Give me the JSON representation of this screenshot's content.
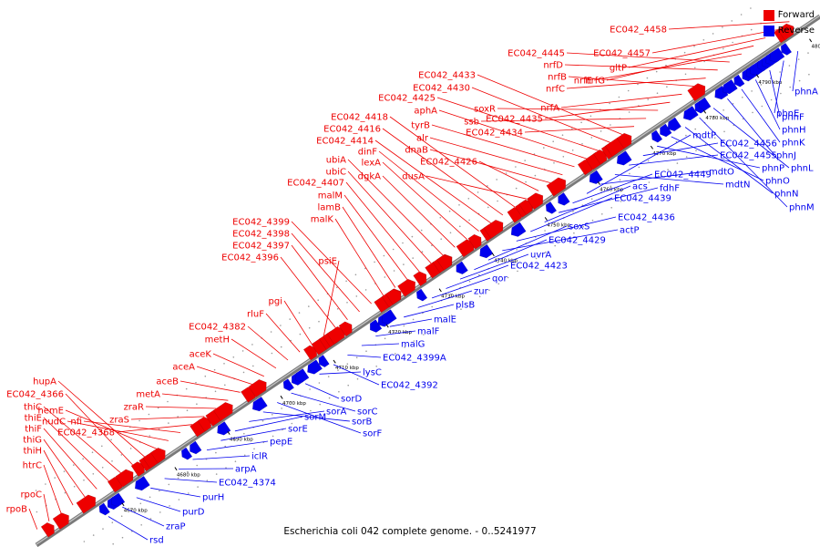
{
  "title": "Escherichia coli 042 complete genome. - 0..5241977",
  "colors": {
    "forward": "#ee0000",
    "reverse": "#0000ee",
    "backbone": "#808080"
  },
  "legend": {
    "forward": "Forward",
    "reverse": "Reverse"
  },
  "ticks": [
    "4670 kbp",
    "4680 kbp",
    "4690 kbp",
    "4700 kbp",
    "4710 kbp",
    "4720 kbp",
    "4730 kbp",
    "4740 kbp",
    "4750 kbp",
    "4760 kbp",
    "4770 kbp",
    "4780 kbp",
    "4790 kbp",
    "4800 kbp"
  ],
  "forward_labels": [
    "rpoB",
    "rpoC",
    "htrC",
    "thiH",
    "thiG",
    "thiF",
    "thiE",
    "thiC",
    "EC042_4366",
    "hupA",
    "hemE",
    "nudC",
    "nfi",
    "EC042_4368",
    "zraS",
    "zraR",
    "metA",
    "aceB",
    "aceA",
    "aceK",
    "metH",
    "EC042_4382",
    "rluF",
    "pgi",
    "psiE",
    "EC042_4396",
    "EC042_4397",
    "EC042_4398",
    "EC042_4399",
    "malK",
    "lamB",
    "malM",
    "EC042_4407",
    "ubiC",
    "ubiA",
    "dgkA",
    "lexA",
    "dinF",
    "EC042_4414",
    "EC042_4416",
    "EC042_4418",
    "dusA",
    "EC042_4426",
    "dnaB",
    "alr",
    "tyrB",
    "aphA",
    "EC042_4425",
    "EC042_4430",
    "EC042_4433",
    "EC042_4434",
    "ssb",
    "soxR",
    "EC042_4435",
    "nrfA",
    "nrfB",
    "nrfC",
    "nrfD",
    "EC042_4445",
    "nrfE",
    "nrfG",
    "gltP",
    "EC042_4457",
    "EC042_4458"
  ],
  "reverse_labels": [
    "rsd",
    "zraP",
    "purD",
    "purH",
    "EC042_4374",
    "arpA",
    "iclR",
    "pepE",
    "sorE",
    "sorM",
    "sorA",
    "sorB",
    "sorF",
    "sorC",
    "sorD",
    "lysC",
    "EC042_4392",
    "EC042_4399A",
    "malG",
    "malF",
    "malE",
    "plsB",
    "zur",
    "qor",
    "EC042_4423",
    "uvrA",
    "EC042_4429",
    "soxS",
    "actP",
    "EC042_4436",
    "EC042_4439",
    "acs",
    "fdhF",
    "EC042_4449",
    "mdtP",
    "mdtO",
    "mdtN",
    "EC042_4455",
    "EC042_4456",
    "phnP",
    "phnO",
    "phnN",
    "phnM",
    "phnL",
    "phnJ",
    "phnK",
    "phnH",
    "phnF",
    "phnE",
    "phnA"
  ]
}
